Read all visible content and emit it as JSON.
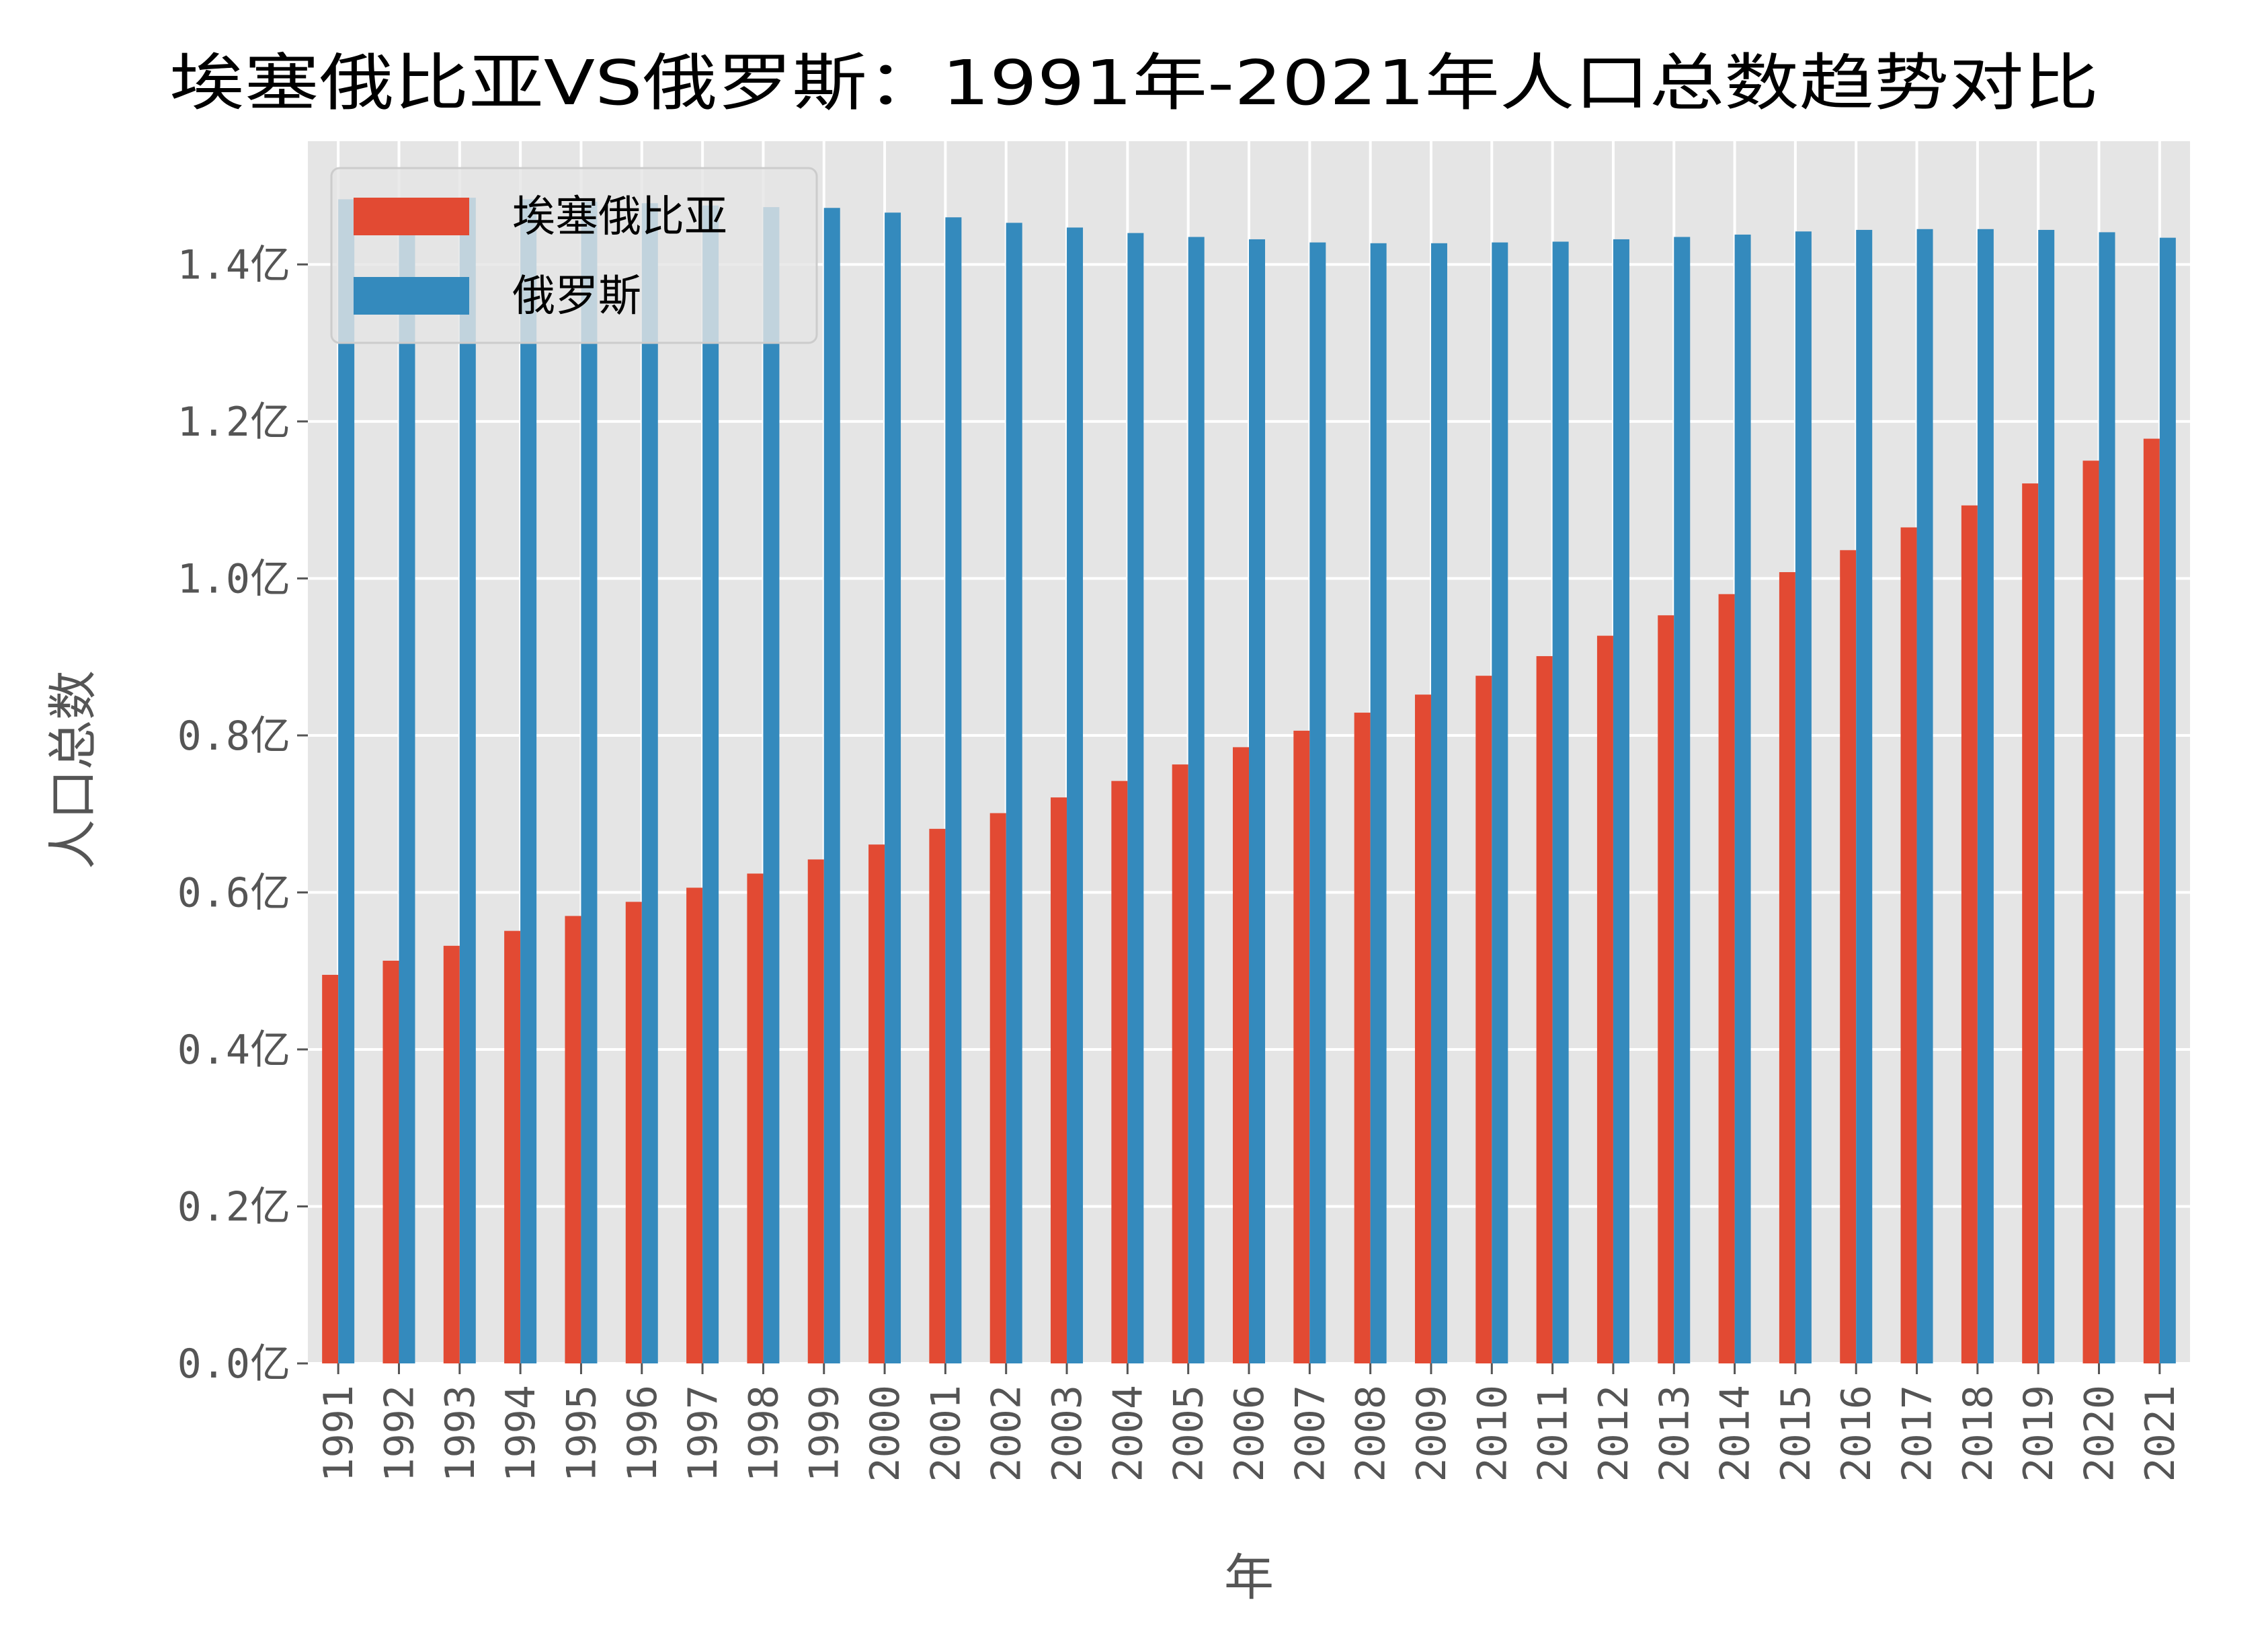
{
  "chart_data": {
    "type": "bar",
    "title": "埃塞俄比亚VS俄罗斯：1991年-2021年人口总数趋势对比",
    "xlabel": "年",
    "ylabel": "人口总数",
    "categories": [
      "1991",
      "1992",
      "1993",
      "1994",
      "1995",
      "1996",
      "1997",
      "1998",
      "1999",
      "2000",
      "2001",
      "2002",
      "2003",
      "2004",
      "2005",
      "2006",
      "2007",
      "2008",
      "2009",
      "2010",
      "2011",
      "2012",
      "2013",
      "2014",
      "2015",
      "2016",
      "2017",
      "2018",
      "2019",
      "2020",
      "2021"
    ],
    "series": [
      {
        "name": "埃塞俄比亚",
        "color": "#e24a33",
        "values": [
          0.495,
          0.513,
          0.532,
          0.551,
          0.57,
          0.588,
          0.606,
          0.624,
          0.642,
          0.661,
          0.681,
          0.701,
          0.721,
          0.742,
          0.763,
          0.785,
          0.806,
          0.829,
          0.852,
          0.876,
          0.901,
          0.927,
          0.953,
          0.98,
          1.008,
          1.036,
          1.065,
          1.093,
          1.121,
          1.15,
          1.178
        ]
      },
      {
        "name": "俄罗斯",
        "color": "#348abd",
        "values": [
          1.483,
          1.484,
          1.485,
          1.483,
          1.48,
          1.478,
          1.475,
          1.473,
          1.472,
          1.466,
          1.46,
          1.453,
          1.447,
          1.44,
          1.435,
          1.432,
          1.428,
          1.427,
          1.427,
          1.428,
          1.429,
          1.432,
          1.435,
          1.438,
          1.442,
          1.444,
          1.445,
          1.445,
          1.444,
          1.441,
          1.434
        ]
      }
    ],
    "yticks": [
      0.0,
      0.2,
      0.4,
      0.6,
      0.8,
      1.0,
      1.2,
      1.4
    ],
    "ytick_labels": [
      "0.0亿",
      "0.2亿",
      "0.4亿",
      "0.6亿",
      "0.8亿",
      "1.0亿",
      "1.2亿",
      "1.4亿"
    ],
    "ylim": [
      0,
      1.557
    ],
    "grid": true,
    "legend_position": "top-left",
    "background_color": "#e5e5e5",
    "grid_color": "#ffffff"
  }
}
